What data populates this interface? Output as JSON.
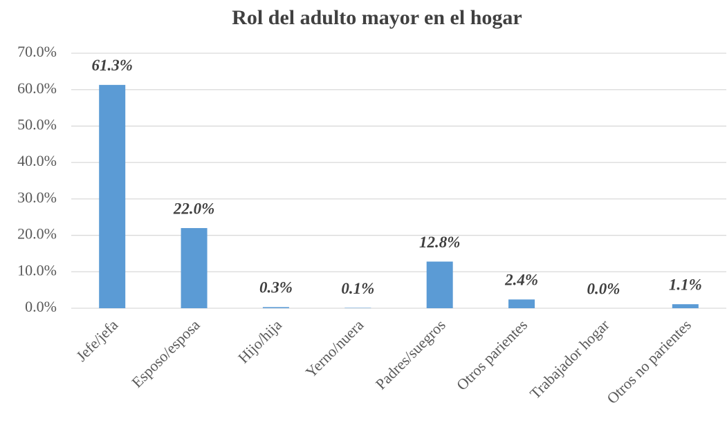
{
  "chart_data": {
    "type": "bar",
    "title": "Rol del adulto mayor en el hogar",
    "categories": [
      "Jefe/jefa",
      "Esposo/esposa",
      "Hijo/hija",
      "Yerno/nuera",
      "Padres/suegros",
      "Otros parientes",
      "Trabajador hogar",
      "Otros no parientes"
    ],
    "values": [
      61.3,
      22.0,
      0.3,
      0.1,
      12.8,
      2.4,
      0.0,
      1.1
    ],
    "value_labels": [
      "61.3%",
      "22.0%",
      "0.3%",
      "0.1%",
      "12.8%",
      "2.4%",
      "0.0%",
      "1.1%"
    ],
    "color": "#5b9bd5",
    "ylim": [
      0,
      70
    ],
    "yticks": [
      {
        "value": 0,
        "label": "0.0%"
      },
      {
        "value": 10,
        "label": "10.0%"
      },
      {
        "value": 20,
        "label": "20.0%"
      },
      {
        "value": 30,
        "label": "30.0%"
      },
      {
        "value": 40,
        "label": "40.0%"
      },
      {
        "value": 50,
        "label": "50.0%"
      },
      {
        "value": 60,
        "label": "60.0%"
      },
      {
        "value": 70,
        "label": "70.0%"
      }
    ],
    "grid": true
  }
}
